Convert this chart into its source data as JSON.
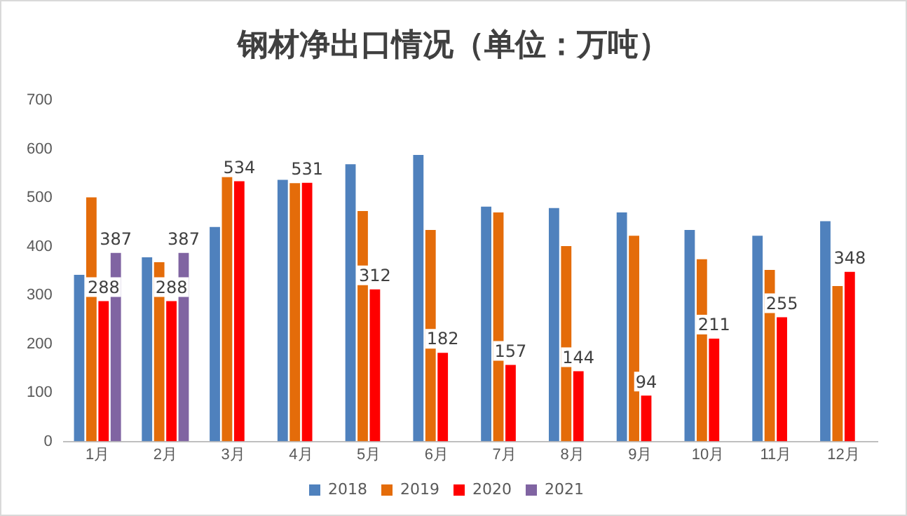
{
  "chart_data": {
    "type": "bar",
    "title": "钢材净出口情况（单位：万吨）",
    "categories": [
      "1月",
      "2月",
      "3月",
      "4月",
      "5月",
      "6月",
      "7月",
      "8月",
      "9月",
      "10月",
      "11月",
      "12月"
    ],
    "series": [
      {
        "name": "2018",
        "color": "#4f81bd",
        "values": [
          342,
          378,
          440,
          537,
          569,
          588,
          482,
          479,
          470,
          434,
          422,
          452
        ]
      },
      {
        "name": "2019",
        "color": "#e46c0a",
        "values": [
          501,
          368,
          543,
          530,
          473,
          434,
          470,
          401,
          422,
          374,
          352,
          319
        ]
      },
      {
        "name": "2020",
        "color": "#ff0000",
        "values": [
          288,
          288,
          534,
          531,
          312,
          182,
          157,
          144,
          94,
          211,
          255,
          348
        ],
        "value_labels": [
          "288",
          "288",
          "534",
          "531",
          "312",
          "182",
          "157",
          "144",
          "94",
          "211",
          "255",
          "348"
        ]
      },
      {
        "name": "2021",
        "color": "#8064a2",
        "values": [
          387,
          387,
          null,
          null,
          null,
          null,
          null,
          null,
          null,
          null,
          null,
          null
        ],
        "value_labels": [
          "387",
          "387",
          null,
          null,
          null,
          null,
          null,
          null,
          null,
          null,
          null,
          null
        ]
      }
    ],
    "ylim": [
      0,
      700
    ],
    "yticks": [
      0,
      100,
      200,
      300,
      400,
      500,
      600,
      700
    ],
    "grid": false,
    "legend": "bottom"
  }
}
